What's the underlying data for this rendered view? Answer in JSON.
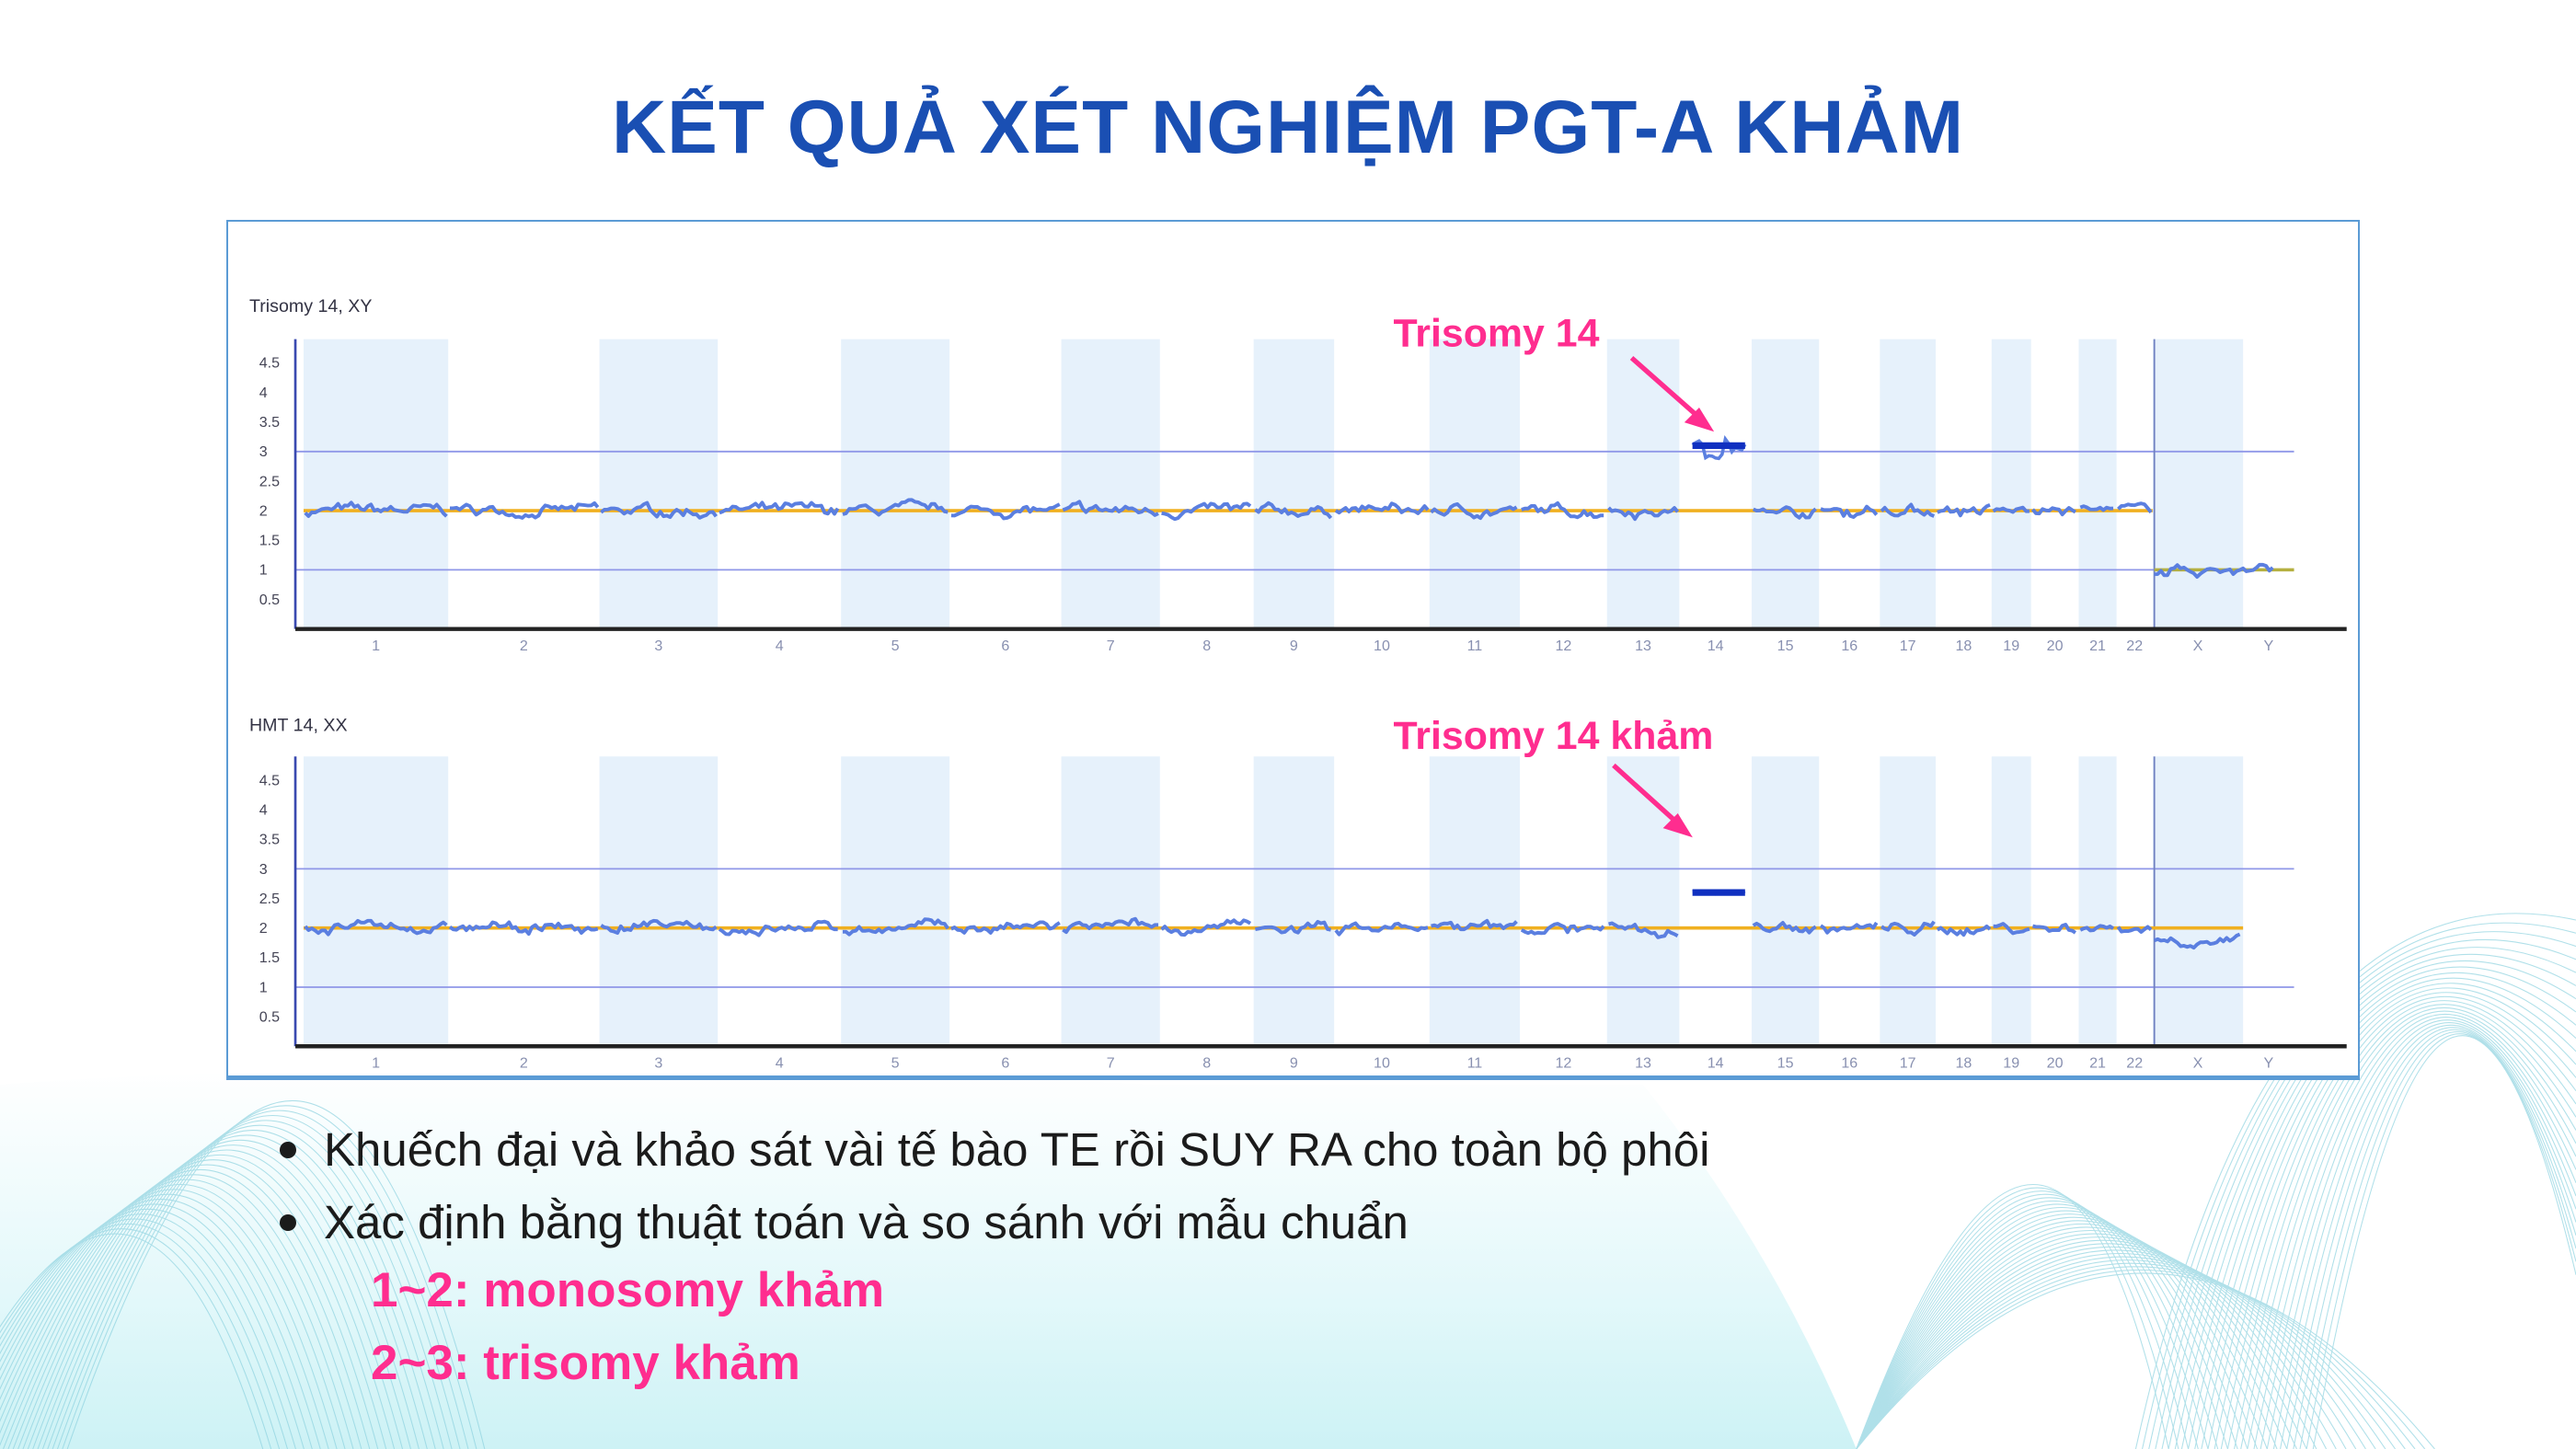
{
  "title": "KẾT QUẢ XÉT NGHIỆM PGT-A KHẢM",
  "bullets": [
    "Khuếch đại và khảo sát vài tế bào TE rồi SUY RA cho toàn bộ phôi",
    "Xác định bằng thuật toán và so sánh với mẫu chuẩn"
  ],
  "notes": [
    "1~2: monosomy khảm",
    "2~3: trisomy khảm"
  ],
  "colors": {
    "title": "#1a4fb3",
    "annotation": "#ff2d8f",
    "trace": "#5b7fe0",
    "baseline": "#f0b020",
    "gridline": "#8f97e8",
    "band": "#e6f1fb",
    "background": "#d4f4f7"
  },
  "chart_data": [
    {
      "type": "line",
      "title": "Trisomy 14, XY",
      "annotation": "Trisomy 14",
      "categories": [
        "1",
        "2",
        "3",
        "4",
        "5",
        "6",
        "7",
        "8",
        "9",
        "10",
        "11",
        "12",
        "13",
        "14",
        "15",
        "16",
        "17",
        "18",
        "19",
        "20",
        "21",
        "22",
        "X",
        "Y"
      ],
      "values": [
        2,
        2,
        2,
        2,
        2,
        2,
        2,
        2,
        2,
        2,
        2,
        2,
        2,
        3.1,
        2,
        2,
        2,
        2,
        2,
        2,
        2,
        2,
        1,
        1
      ],
      "yticks": [
        "4.5",
        "4",
        "3.5",
        "3",
        "2.5",
        "2",
        "1.5",
        "1",
        "0.5"
      ],
      "ylim": [
        0,
        5
      ],
      "reference_lines": [
        1,
        3
      ],
      "highlight": "14"
    },
    {
      "type": "line",
      "title": "HMT 14, XX",
      "annotation": "Trisomy 14 khảm",
      "categories": [
        "1",
        "2",
        "3",
        "4",
        "5",
        "6",
        "7",
        "8",
        "9",
        "10",
        "11",
        "12",
        "13",
        "14",
        "15",
        "16",
        "17",
        "18",
        "19",
        "20",
        "21",
        "22",
        "X",
        "Y"
      ],
      "values": [
        2,
        2,
        2,
        2,
        2,
        2,
        2,
        2,
        2,
        2,
        2,
        2,
        2,
        2.6,
        2,
        2,
        2,
        2,
        2,
        2,
        2,
        2,
        1.8,
        null
      ],
      "yticks": [
        "4.5",
        "4",
        "3.5",
        "3",
        "2.5",
        "2",
        "1.5",
        "1",
        "0.5"
      ],
      "ylim": [
        0,
        5
      ],
      "reference_lines": [
        1,
        3
      ],
      "highlight": "14"
    }
  ]
}
